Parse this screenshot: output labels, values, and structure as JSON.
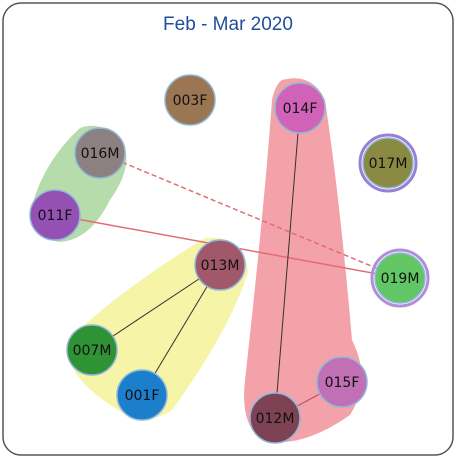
{
  "title": "Feb - Mar 2020",
  "nodes": [
    {
      "label": "003F",
      "color": "#9b7653"
    },
    {
      "label": "014F",
      "color": "#d063b8"
    },
    {
      "label": "016M",
      "color": "#8c8080"
    },
    {
      "label": "017M",
      "color": "#8a8a42"
    },
    {
      "label": "011F",
      "color": "#9451b3"
    },
    {
      "label": "013M",
      "color": "#a1586a"
    },
    {
      "label": "019M",
      "color": "#63c665"
    },
    {
      "label": "007M",
      "color": "#2f9335"
    },
    {
      "label": "015F",
      "color": "#c270b6"
    },
    {
      "label": "001F",
      "color": "#1b7fcb"
    },
    {
      "label": "012M",
      "color": "#7e4255"
    }
  ]
}
